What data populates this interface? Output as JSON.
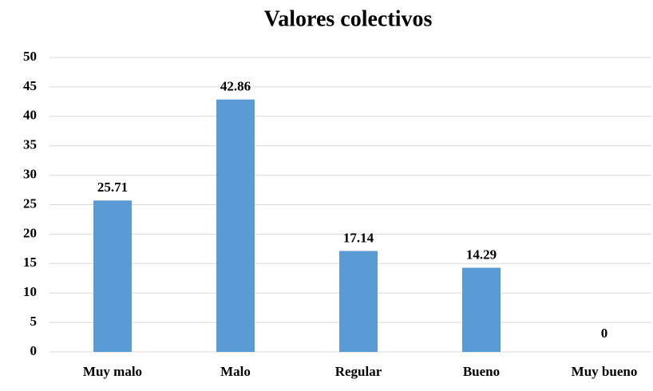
{
  "chart_data": {
    "type": "bar",
    "title": "Valores colectivos",
    "categories": [
      "Muy malo",
      "Malo",
      "Regular",
      "Bueno",
      "Muy bueno"
    ],
    "values": [
      25.71,
      42.86,
      17.14,
      14.29,
      0
    ],
    "color": "#5b9bd5",
    "ylim": [
      0,
      50
    ],
    "yticks": [
      0,
      5,
      10,
      15,
      20,
      25,
      30,
      35,
      40,
      45,
      50
    ],
    "grid": true
  }
}
